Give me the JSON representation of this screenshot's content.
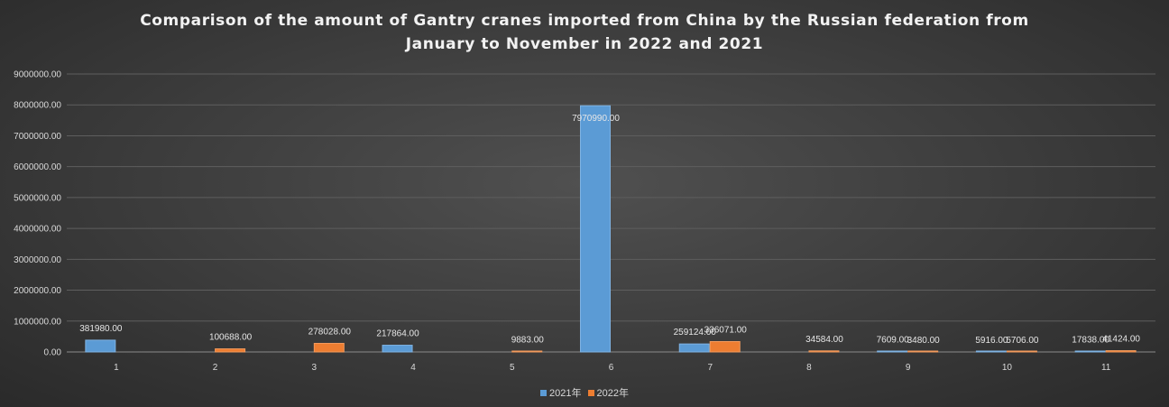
{
  "chart_data": {
    "type": "bar",
    "title": "Comparison of the amount of Gantry cranes imported from China by the Russian federation from January to November in 2022 and 2021",
    "title_lines": [
      "Comparison of the amount of Gantry cranes imported from China by the Russian federation from",
      "January to November in 2022 and 2021"
    ],
    "xlabel": "",
    "ylabel": "",
    "categories": [
      "1",
      "2",
      "3",
      "4",
      "5",
      "6",
      "7",
      "8",
      "9",
      "10",
      "11"
    ],
    "series": [
      {
        "name": "2021年",
        "color": "#5b9bd5",
        "values": [
          381980,
          0,
          0,
          217864,
          0,
          7970990,
          259124,
          0,
          7609,
          5916,
          17838
        ],
        "labels": [
          "381980.00",
          "",
          "",
          "217864.00",
          "",
          "7970990.00",
          "259124.00",
          "",
          "7609.00",
          "5916.00",
          "17838.00"
        ]
      },
      {
        "name": "2022年",
        "color": "#ed7d31",
        "values": [
          0,
          100688,
          278028,
          0,
          9883,
          0,
          336071,
          34584,
          3480,
          5706,
          41424
        ],
        "labels": [
          "",
          "100688.00",
          "278028.00",
          "",
          "9883.00",
          "",
          "336071.00",
          "34584.00",
          "3480.00",
          "5706.00",
          "41424.00"
        ]
      }
    ],
    "ylim": [
      0,
      9000000
    ],
    "y_ticks": [
      0,
      1000000,
      2000000,
      3000000,
      4000000,
      5000000,
      6000000,
      7000000,
      8000000,
      9000000
    ],
    "y_tick_labels": [
      "0.00",
      "1000000.00",
      "2000000.00",
      "3000000.00",
      "4000000.00",
      "5000000.00",
      "6000000.00",
      "7000000.00",
      "8000000.00",
      "9000000.00"
    ],
    "grid": true,
    "legend": "bottom"
  }
}
